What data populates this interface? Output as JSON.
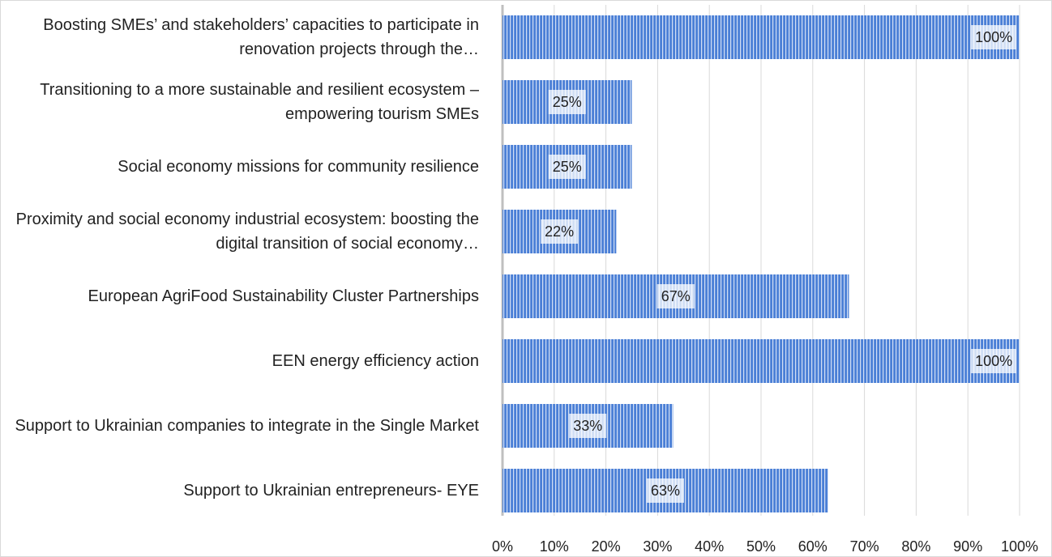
{
  "chart_data": {
    "type": "barh",
    "categories": [
      "Boosting SMEs’ and stakeholders’ capacities to participate in renovation projects through the…",
      "Transitioning to a more sustainable and resilient ecosystem – empowering tourism SMEs",
      "Social economy missions for community resilience",
      "Proximity and social economy industrial ecosystem: boosting the digital transition of social economy…",
      "European AgriFood Sustainability Cluster Partnerships",
      "EEN energy efficiency action",
      "Support to Ukrainian companies to integrate in the Single Market",
      "Support to Ukrainian entrepreneurs- EYE"
    ],
    "values": [
      100,
      25,
      25,
      22,
      67,
      100,
      33,
      63
    ],
    "value_labels": [
      "100%",
      "25%",
      "25%",
      "22%",
      "67%",
      "100%",
      "33%",
      "63%"
    ],
    "color": "#4a7fd6",
    "xlim": [
      0,
      100
    ],
    "xticks": [
      {
        "value": 0,
        "label": "0%"
      },
      {
        "value": 10,
        "label": "10%"
      },
      {
        "value": 20,
        "label": "20%"
      },
      {
        "value": 30,
        "label": "30%"
      },
      {
        "value": 40,
        "label": "40%"
      },
      {
        "value": 50,
        "label": "50%"
      },
      {
        "value": 60,
        "label": "60%"
      },
      {
        "value": 70,
        "label": "70%"
      },
      {
        "value": 80,
        "label": "80%"
      },
      {
        "value": 90,
        "label": "90%"
      },
      {
        "value": 100,
        "label": "100%"
      }
    ],
    "grid": true
  }
}
